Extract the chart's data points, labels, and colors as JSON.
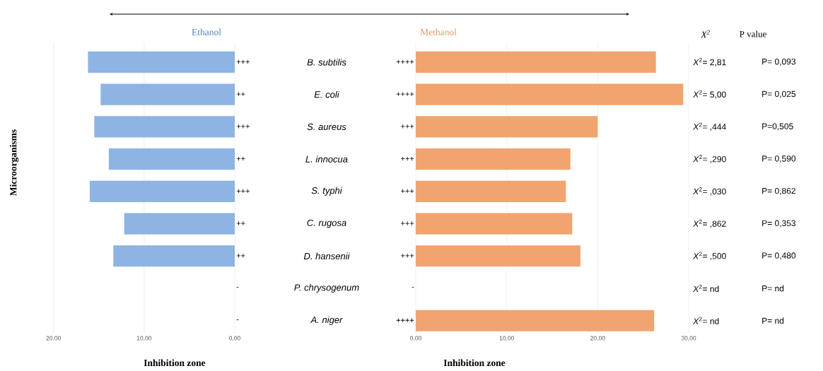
{
  "chart_data": [
    {
      "type": "bar",
      "orientation": "horizontal",
      "title": "Ethanol",
      "xlabel": "Inhibition zone",
      "ylabel": "Microorganisms",
      "categories": [
        "B. subtilis",
        "E. coli",
        "S. aureus",
        "L. innocua",
        "S. typhi",
        "C. rugosa",
        "D. hansenii",
        "P. chrysogenum",
        "A. niger"
      ],
      "values": [
        16.2,
        14.8,
        15.5,
        13.9,
        16.0,
        12.2,
        13.4,
        null,
        null
      ],
      "value_labels": [
        "+++",
        "++",
        "+++",
        "++",
        "+++",
        "++",
        "++",
        "-",
        "-"
      ],
      "color": "#8db4e2",
      "xlim": [
        20,
        0
      ],
      "xticks": [
        {
          "value": 20,
          "label": "20,00"
        },
        {
          "value": 10,
          "label": "10,00"
        },
        {
          "value": 0,
          "label": "0,00"
        }
      ],
      "grid": "x"
    },
    {
      "type": "bar",
      "orientation": "horizontal",
      "title": "Methanol",
      "xlabel": "Inhibition zone",
      "values": [
        26.4,
        29.4,
        20.0,
        17.0,
        16.5,
        17.2,
        18.1,
        null,
        26.2
      ],
      "value_labels": [
        "++++",
        "++++",
        "+++",
        "+++",
        "+++",
        "+++",
        "+++",
        "-",
        "++++"
      ],
      "color": "#f1a46f",
      "xlim": [
        0,
        30
      ],
      "xticks": [
        {
          "value": 0,
          "label": "0,00"
        },
        {
          "value": 10,
          "label": "10,00"
        },
        {
          "value": 20,
          "label": "20,00"
        },
        {
          "value": 30,
          "label": "30,00"
        }
      ],
      "grid": "x",
      "annotations": [
        "*X*$^{2}$",
        "P value",
        "*X*$^{2}$= 2,81",
        "P= 0,093",
        "*X*$^{2}$= 5,00",
        "P= 0,025",
        "*X*$^{2}$= ,444",
        "P=0,505",
        "*X*$^{2}$= ,290",
        "P= 0,590",
        "*X*$^{2}$= ,030",
        "P= 0,862",
        "*X*$^{2}$= ,862",
        "P= 0,353",
        "*X*$^{2}$= ,500",
        "P= 0,480",
        "*X*$^{2}$= nd",
        "P= nd",
        "*X*$^{2}$= nd",
        "P= nd"
      ]
    }
  ]
}
